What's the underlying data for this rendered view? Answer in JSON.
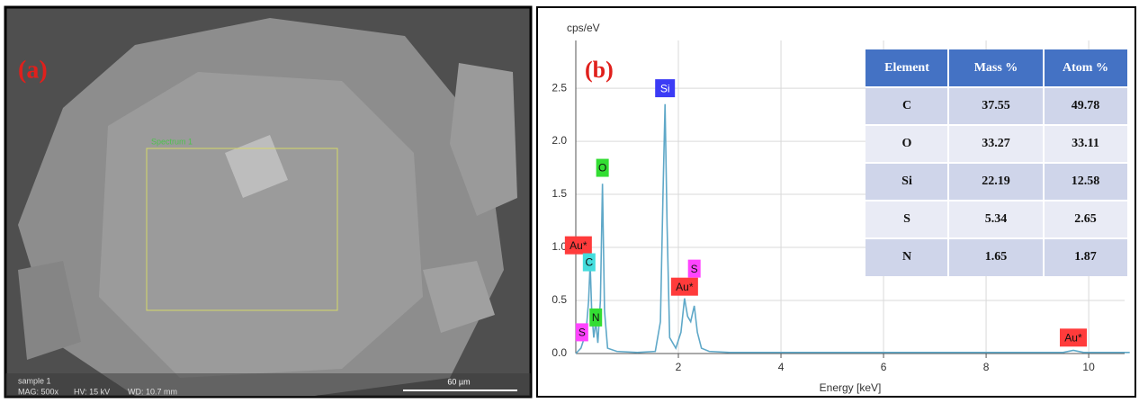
{
  "panel_a": {
    "label": "(a)",
    "region_label": "Spectrum 1",
    "info": [
      "sample 1",
      "MAG: 500x",
      "HV: 15 kV",
      "WD: 10.7 mm"
    ],
    "scale_bar": "60 µm"
  },
  "chart_data": {
    "type": "line",
    "label": "(b)",
    "y_label": "cps/eV",
    "x_label": "Energy [keV]",
    "color": "#5fa8c8",
    "x": [
      0,
      0.1,
      0.2,
      0.25,
      0.28,
      0.31,
      0.35,
      0.39,
      0.43,
      0.48,
      0.52,
      0.56,
      0.62,
      0.8,
      1.2,
      1.55,
      1.65,
      1.7,
      1.74,
      1.78,
      1.83,
      1.95,
      2.05,
      2.12,
      2.18,
      2.24,
      2.31,
      2.37,
      2.45,
      2.6,
      3,
      4,
      6,
      8,
      9.5,
      9.7,
      9.9,
      10.8
    ],
    "values": [
      0,
      0.05,
      0.2,
      0.5,
      0.85,
      0.4,
      0.15,
      0.3,
      0.1,
      0.5,
      1.6,
      0.4,
      0.05,
      0.02,
      0.01,
      0.02,
      0.3,
      1.5,
      2.35,
      1.2,
      0.15,
      0.05,
      0.2,
      0.52,
      0.35,
      0.3,
      0.45,
      0.2,
      0.05,
      0.02,
      0.01,
      0.01,
      0.01,
      0.01,
      0.01,
      0.03,
      0.01,
      0.01
    ],
    "xlim": [
      0,
      10.7
    ],
    "ylim": [
      0,
      2.95
    ],
    "xticks": [
      2,
      4,
      6,
      8,
      10
    ],
    "yticks": [
      {
        "value": 0,
        "label": "0.0"
      },
      0.5,
      {
        "value": 1,
        "label": "1.0"
      },
      1.5,
      {
        "value": 2,
        "label": "2.0"
      },
      2.5
    ],
    "grid": true,
    "annotations": [
      {
        "text": "Si",
        "x": 1.74,
        "y": 2.5,
        "color": "#3b3bf5"
      },
      {
        "text": "O",
        "x": 0.52,
        "y": 1.75,
        "color": "#33dd33"
      },
      {
        "text": "Au*",
        "x": 0.05,
        "y": 1.02,
        "color": "#ff3b3b"
      },
      {
        "text": "C",
        "x": 0.26,
        "y": 0.86,
        "color": "#44dddd"
      },
      {
        "text": "S",
        "x": 2.31,
        "y": 0.8,
        "color": "#ff44ff"
      },
      {
        "text": "Au*",
        "x": 2.12,
        "y": 0.63,
        "color": "#ff3b3b"
      },
      {
        "text": "N",
        "x": 0.39,
        "y": 0.34,
        "color": "#33dd33"
      },
      {
        "text": "S",
        "x": 0.12,
        "y": 0.2,
        "color": "#ff44ff"
      },
      {
        "text": "Au*",
        "x": 9.7,
        "y": 0.15,
        "color": "#ff3b3b"
      }
    ]
  },
  "table": {
    "header": [
      "Element",
      "Mass %",
      "Atom %"
    ],
    "rows": [
      [
        "C",
        37.55,
        49.78
      ],
      [
        "O",
        33.27,
        33.11
      ],
      [
        "Si",
        22.19,
        12.58
      ],
      [
        "S",
        5.34,
        2.65
      ],
      [
        "N",
        1.65,
        1.87
      ]
    ]
  }
}
